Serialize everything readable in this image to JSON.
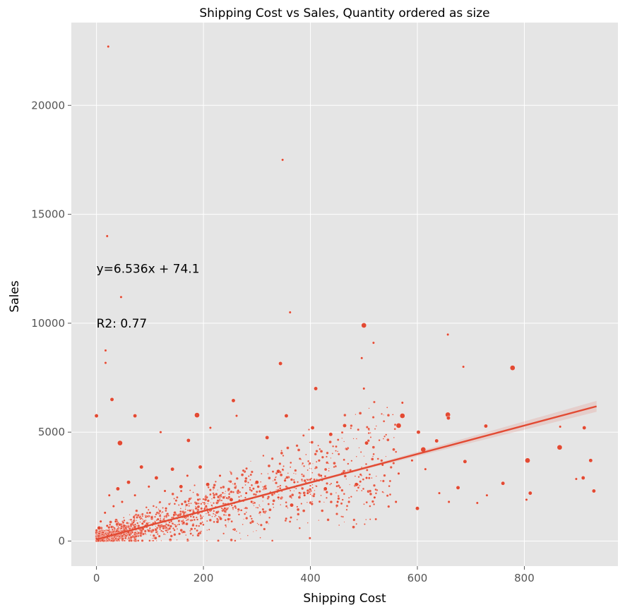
{
  "chart_data": {
    "type": "scatter",
    "title": "Shipping Cost vs Sales, Quantity ordered as size",
    "xlabel": "Shipping Cost",
    "ylabel": "Sales",
    "xlim": [
      -47,
      975
    ],
    "ylim": [
      -1150,
      23800
    ],
    "x_ticks": [
      0,
      200,
      400,
      600,
      800
    ],
    "y_ticks": [
      0,
      5000,
      10000,
      15000,
      20000
    ],
    "x_tick_labels": [
      "0",
      "200",
      "400",
      "600",
      "800"
    ],
    "y_tick_labels": [
      "0",
      "5000",
      "10000",
      "15000",
      "20000"
    ],
    "grid": true,
    "point_color": "#e24a33",
    "line_color": "#e24a33",
    "background_color": "#e5e5e5",
    "size_encoding": "Quantity ordered",
    "regression": {
      "slope": 6.536,
      "intercept": 74.1,
      "x_range": [
        0,
        935
      ],
      "equation_label": "y=6.536x + 74.1",
      "r2_label": "R2: 0.77",
      "equation_anchor": [
        0,
        12500
      ],
      "r2_anchor": [
        0,
        10000
      ]
    },
    "points": [
      [
        22,
        22700,
        1
      ],
      [
        348,
        17500,
        1
      ],
      [
        20,
        14000,
        1
      ],
      [
        46,
        11200,
        1
      ],
      [
        362,
        10500,
        1
      ],
      [
        500,
        9900,
        3
      ],
      [
        657,
        9480,
        1
      ],
      [
        518,
        9100,
        1
      ],
      [
        17,
        8750,
        1
      ],
      [
        778,
        7950,
        3
      ],
      [
        686,
        8000,
        1
      ],
      [
        17,
        8180,
        1
      ],
      [
        344,
        8150,
        2
      ],
      [
        496,
        8400,
        1
      ],
      [
        410,
        7000,
        2
      ],
      [
        500,
        7000,
        1
      ],
      [
        29,
        6500,
        2
      ],
      [
        256,
        6450,
        2
      ],
      [
        572,
        6350,
        1
      ],
      [
        0,
        5750,
        2
      ],
      [
        72,
        5750,
        2
      ],
      [
        188,
        5780,
        3
      ],
      [
        262,
        5750,
        1
      ],
      [
        355,
        5750,
        2
      ],
      [
        572,
        5750,
        3
      ],
      [
        657,
        5800,
        3
      ],
      [
        658,
        5650,
        2
      ],
      [
        728,
        5280,
        2
      ],
      [
        867,
        5250,
        1
      ],
      [
        912,
        5200,
        2
      ],
      [
        44,
        4500,
        3
      ],
      [
        120,
        5000,
        1
      ],
      [
        172,
        4620,
        2
      ],
      [
        213,
        5200,
        1
      ],
      [
        319,
        4750,
        2
      ],
      [
        404,
        5200,
        2
      ],
      [
        438,
        4900,
        2
      ],
      [
        464,
        5300,
        2
      ],
      [
        505,
        4500,
        2
      ],
      [
        565,
        5300,
        3
      ],
      [
        602,
        5000,
        2
      ],
      [
        611,
        4200,
        3
      ],
      [
        636,
        4600,
        2
      ],
      [
        689,
        3650,
        2
      ],
      [
        806,
        3700,
        3
      ],
      [
        866,
        4300,
        3
      ],
      [
        924,
        3700,
        2
      ],
      [
        930,
        2300,
        2
      ],
      [
        897,
        2850,
        1
      ],
      [
        910,
        2900,
        2
      ],
      [
        804,
        1900,
        1
      ],
      [
        811,
        2200,
        2
      ],
      [
        760,
        2650,
        2
      ],
      [
        730,
        2100,
        1
      ],
      [
        712,
        1750,
        1
      ],
      [
        676,
        2450,
        2
      ],
      [
        659,
        1800,
        1
      ],
      [
        641,
        2200,
        1
      ],
      [
        600,
        1500,
        2
      ],
      [
        560,
        1800,
        1
      ],
      [
        520,
        2000,
        1
      ],
      [
        486,
        2600,
        2
      ],
      [
        451,
        1800,
        1
      ],
      [
        428,
        2400,
        2
      ],
      [
        389,
        2100,
        1
      ],
      [
        365,
        1650,
        2
      ],
      [
        340,
        3200,
        2
      ],
      [
        300,
        2700,
        2
      ],
      [
        280,
        2200,
        1
      ],
      [
        252,
        1900,
        2
      ],
      [
        231,
        3000,
        1
      ],
      [
        208,
        2600,
        2
      ],
      [
        194,
        3400,
        2
      ],
      [
        170,
        3000,
        1
      ],
      [
        158,
        2500,
        2
      ],
      [
        142,
        3300,
        2
      ],
      [
        128,
        2300,
        1
      ],
      [
        112,
        2900,
        2
      ],
      [
        98,
        2500,
        1
      ],
      [
        84,
        3400,
        2
      ],
      [
        72,
        2100,
        1
      ],
      [
        60,
        2700,
        2
      ],
      [
        48,
        1800,
        1
      ],
      [
        40,
        2400,
        2
      ],
      [
        32,
        1600,
        1
      ],
      [
        24,
        2100,
        1
      ],
      [
        16,
        1300,
        1
      ],
      [
        8,
        900,
        1
      ],
      [
        5,
        600,
        2
      ],
      [
        12,
        400,
        1
      ],
      [
        20,
        700,
        1
      ],
      [
        28,
        300,
        1
      ],
      [
        36,
        900,
        1
      ],
      [
        55,
        600,
        1
      ],
      [
        70,
        1100,
        1
      ],
      [
        86,
        800,
        1
      ],
      [
        100,
        1300,
        1
      ],
      [
        115,
        1000,
        1
      ],
      [
        130,
        1500,
        1
      ],
      [
        145,
        1200,
        1
      ],
      [
        160,
        1700,
        1
      ],
      [
        175,
        1400,
        1
      ],
      [
        190,
        1900,
        1
      ],
      [
        205,
        1600,
        1
      ],
      [
        220,
        2000,
        1
      ],
      [
        240,
        1500,
        1
      ],
      [
        265,
        2300,
        1
      ],
      [
        290,
        1800,
        1
      ],
      [
        315,
        2500,
        1
      ],
      [
        340,
        2000,
        1
      ],
      [
        370,
        2700,
        1
      ],
      [
        395,
        2200,
        1
      ],
      [
        420,
        3000,
        1
      ],
      [
        450,
        2700,
        1
      ],
      [
        478,
        3200,
        1
      ],
      [
        505,
        2900,
        1
      ],
      [
        535,
        3500,
        1
      ],
      [
        565,
        3100,
        1
      ],
      [
        590,
        3700,
        1
      ],
      [
        615,
        3300,
        1
      ]
    ]
  }
}
